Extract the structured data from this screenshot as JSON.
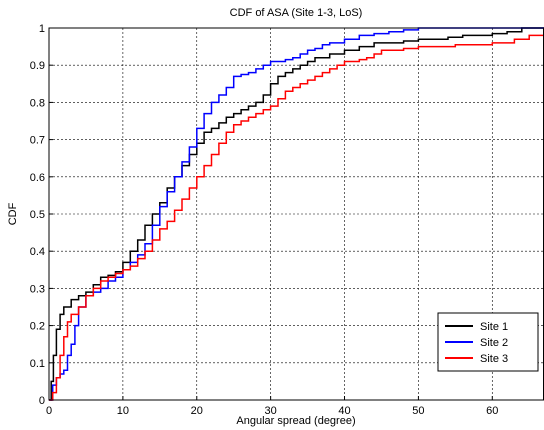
{
  "chart_data": {
    "type": "line",
    "title": "CDF of ASA (Site 1-3, LoS)",
    "xlabel": "Angular spread (degree)",
    "ylabel": "CDF",
    "xlim": [
      0,
      67
    ],
    "ylim": [
      0,
      1
    ],
    "xticks": [
      0,
      10,
      20,
      30,
      40,
      50,
      60
    ],
    "yticks": [
      0,
      0.1,
      0.2,
      0.3,
      0.4,
      0.5,
      0.6,
      0.7,
      0.8,
      0.9,
      1
    ],
    "grid": true,
    "legend_position": "bottom-right",
    "series": [
      {
        "name": "Site 1",
        "color": "#000000",
        "x": [
          0,
          0.3,
          0.6,
          1,
          1.5,
          2,
          3,
          4,
          5,
          6,
          7,
          8,
          9,
          10,
          11,
          12,
          13,
          14,
          15,
          16,
          17,
          18,
          19,
          20,
          21,
          22,
          23,
          24,
          25,
          26,
          27,
          28,
          29,
          30,
          31,
          32,
          33,
          34,
          35,
          36,
          38,
          40,
          42,
          44,
          46,
          48,
          50,
          52,
          54,
          56,
          58,
          60,
          62,
          64,
          67
        ],
        "y": [
          0,
          0.05,
          0.12,
          0.19,
          0.23,
          0.25,
          0.27,
          0.28,
          0.29,
          0.31,
          0.33,
          0.335,
          0.345,
          0.37,
          0.4,
          0.43,
          0.47,
          0.5,
          0.53,
          0.57,
          0.6,
          0.63,
          0.66,
          0.69,
          0.72,
          0.73,
          0.745,
          0.76,
          0.77,
          0.78,
          0.79,
          0.8,
          0.82,
          0.85,
          0.87,
          0.88,
          0.89,
          0.9,
          0.91,
          0.92,
          0.93,
          0.94,
          0.95,
          0.96,
          0.96,
          0.965,
          0.97,
          0.97,
          0.975,
          0.98,
          0.98,
          0.985,
          0.99,
          1,
          1
        ]
      },
      {
        "name": "Site 2",
        "color": "#0000ff",
        "x": [
          0,
          0.5,
          1,
          1.5,
          2,
          2.5,
          3,
          3.5,
          4,
          5,
          6,
          7,
          8,
          9,
          10,
          11,
          12,
          13,
          14,
          15,
          16,
          17,
          18,
          19,
          20,
          21,
          22,
          23,
          24,
          25,
          26,
          27,
          28,
          29,
          30,
          31,
          32,
          33,
          34,
          35,
          36,
          37,
          38,
          40,
          42,
          44,
          46,
          48,
          50,
          52,
          54,
          56,
          60,
          67
        ],
        "y": [
          0,
          0.04,
          0.06,
          0.07,
          0.08,
          0.12,
          0.15,
          0.2,
          0.25,
          0.28,
          0.29,
          0.3,
          0.32,
          0.33,
          0.35,
          0.37,
          0.39,
          0.42,
          0.47,
          0.52,
          0.56,
          0.6,
          0.64,
          0.68,
          0.73,
          0.77,
          0.8,
          0.82,
          0.84,
          0.87,
          0.875,
          0.88,
          0.89,
          0.9,
          0.91,
          0.91,
          0.915,
          0.92,
          0.93,
          0.94,
          0.945,
          0.955,
          0.96,
          0.97,
          0.98,
          0.985,
          0.99,
          0.995,
          1,
          1,
          1,
          1,
          1,
          1
        ]
      },
      {
        "name": "Site 3",
        "color": "#ff0000",
        "x": [
          0,
          0.5,
          1,
          1.5,
          2,
          2.5,
          3,
          4,
          5,
          6,
          7,
          8,
          9,
          10,
          11,
          12,
          13,
          14,
          15,
          16,
          17,
          18,
          19,
          20,
          21,
          22,
          23,
          24,
          25,
          26,
          27,
          28,
          29,
          30,
          31,
          32,
          33,
          34,
          35,
          36,
          37,
          38,
          39,
          40,
          41,
          42,
          43,
          44,
          45,
          46,
          48,
          50,
          55,
          60,
          63,
          65,
          67
        ],
        "y": [
          0,
          0.02,
          0.06,
          0.12,
          0.17,
          0.21,
          0.23,
          0.25,
          0.28,
          0.3,
          0.32,
          0.33,
          0.34,
          0.35,
          0.36,
          0.38,
          0.4,
          0.43,
          0.46,
          0.48,
          0.51,
          0.54,
          0.57,
          0.6,
          0.63,
          0.66,
          0.69,
          0.72,
          0.74,
          0.75,
          0.76,
          0.77,
          0.78,
          0.79,
          0.81,
          0.83,
          0.84,
          0.85,
          0.86,
          0.87,
          0.88,
          0.89,
          0.9,
          0.91,
          0.91,
          0.915,
          0.92,
          0.93,
          0.94,
          0.94,
          0.945,
          0.95,
          0.955,
          0.96,
          0.97,
          0.98,
          0.99
        ]
      }
    ]
  }
}
